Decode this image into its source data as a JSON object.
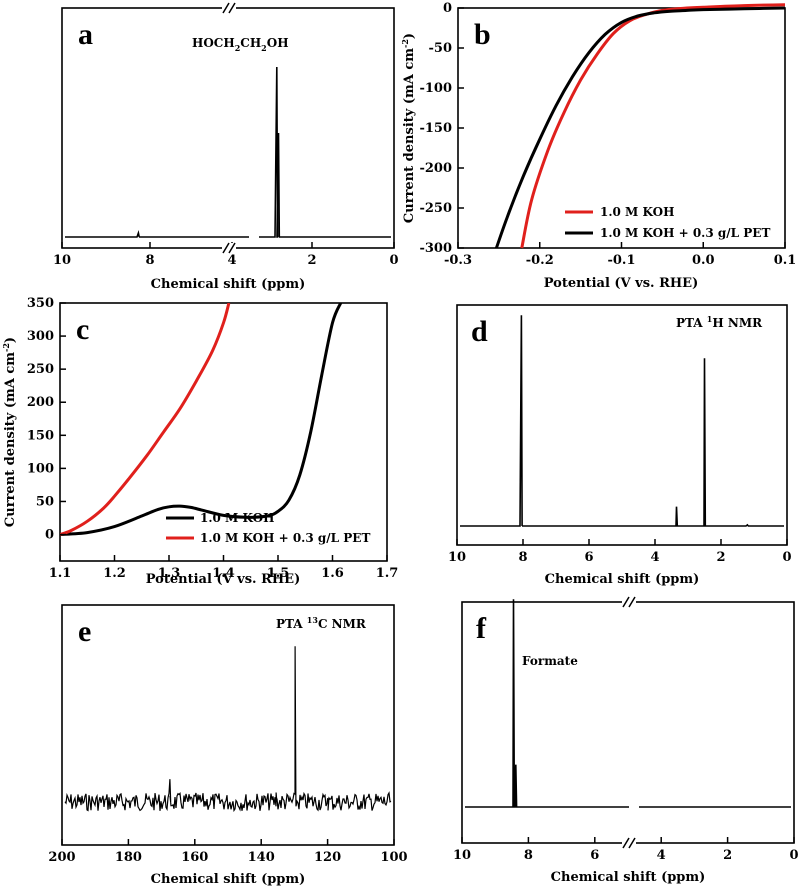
{
  "chart_data": [
    {
      "panel": "a",
      "type": "line",
      "xlabel": "Chemical shift (ppm)",
      "ylabel": "",
      "xlim": [
        10,
        0
      ],
      "x_ticks": [
        10,
        8,
        4,
        2,
        0
      ],
      "axis_break_x": 4.2,
      "annotations": [
        {
          "text": "HOCH₂CH₂OH",
          "x": 3.6
        }
      ],
      "series": [
        {
          "color": "#000000",
          "peaks": [
            {
              "x": 7.7,
              "h": 0.02
            },
            {
              "x": 3.53,
              "h": 0.85
            },
            {
              "x": 3.48,
              "h": 0.52
            }
          ]
        }
      ]
    },
    {
      "panel": "b",
      "type": "line",
      "xlabel": "Potential (V vs. RHE)",
      "ylabel": "Current density (mA cm⁻²)",
      "xlim": [
        -0.3,
        0.1
      ],
      "ylim": [
        -300,
        0
      ],
      "x_ticks": [
        -0.3,
        -0.2,
        -0.1,
        0.0,
        0.1
      ],
      "y_ticks": [
        0,
        -50,
        -100,
        -150,
        -200,
        -250,
        -300
      ],
      "legend": "bottom-right",
      "series": [
        {
          "name": "1.0 M KOH",
          "color": "#e0201c",
          "x": [
            -0.222,
            -0.21,
            -0.19,
            -0.17,
            -0.15,
            -0.13,
            -0.11,
            -0.09,
            -0.07,
            -0.05,
            -0.02,
            0.0,
            0.05,
            0.1
          ],
          "y": [
            -300,
            -240,
            -178,
            -130,
            -90,
            -58,
            -32,
            -16,
            -8,
            -3,
            0,
            1,
            3,
            4
          ]
        },
        {
          "name": "1.0 M KOH + 0.3 g/L PET",
          "color": "#000000",
          "x": [
            -0.253,
            -0.24,
            -0.22,
            -0.2,
            -0.18,
            -0.16,
            -0.14,
            -0.12,
            -0.1,
            -0.08,
            -0.06,
            -0.04,
            -0.02,
            0.0,
            0.05,
            0.1
          ],
          "y": [
            -300,
            -262,
            -210,
            -164,
            -122,
            -86,
            -56,
            -33,
            -18,
            -10,
            -6,
            -4,
            -3,
            -2,
            -1,
            0
          ]
        }
      ]
    },
    {
      "panel": "c",
      "type": "line",
      "xlabel": "Potential (V vs. RHE)",
      "ylabel": "Current density (mA cm⁻²)",
      "xlim": [
        1.1,
        1.7
      ],
      "ylim": [
        -40,
        350
      ],
      "x_ticks": [
        1.1,
        1.2,
        1.3,
        1.4,
        1.5,
        1.6,
        1.7
      ],
      "y_ticks": [
        0,
        50,
        100,
        150,
        200,
        250,
        300,
        350
      ],
      "legend": "bottom-center",
      "series": [
        {
          "name": "1.0 M KOH",
          "color": "#000000",
          "x": [
            1.1,
            1.15,
            1.2,
            1.25,
            1.28,
            1.3,
            1.32,
            1.34,
            1.36,
            1.4,
            1.44,
            1.48,
            1.5,
            1.52,
            1.54,
            1.56,
            1.58,
            1.6,
            1.615
          ],
          "y": [
            0,
            3,
            12,
            28,
            38,
            42,
            43,
            41,
            37,
            29,
            26,
            28,
            35,
            52,
            90,
            155,
            240,
            320,
            350
          ]
        },
        {
          "name": "1.0 M KOH + 0.3 g/L PET",
          "color": "#e0201c",
          "x": [
            1.1,
            1.12,
            1.15,
            1.18,
            1.2,
            1.23,
            1.26,
            1.29,
            1.32,
            1.35,
            1.38,
            1.4,
            1.41
          ],
          "y": [
            0,
            6,
            20,
            40,
            58,
            88,
            120,
            155,
            190,
            232,
            278,
            320,
            350
          ]
        }
      ]
    },
    {
      "panel": "d",
      "type": "line",
      "xlabel": "Chemical shift (ppm)",
      "ylabel": "",
      "xlim": [
        10,
        0
      ],
      "x_ticks": [
        10,
        8,
        6,
        4,
        2,
        0
      ],
      "annotations": [
        {
          "text": "PTA ¹H NMR"
        }
      ],
      "series": [
        {
          "color": "#000000",
          "peaks": [
            {
              "x": 8.05,
              "h": 0.98
            },
            {
              "x": 3.35,
              "h": 0.09
            },
            {
              "x": 2.5,
              "h": 0.78
            },
            {
              "x": 1.2,
              "h": 0.005
            }
          ]
        }
      ]
    },
    {
      "panel": "e",
      "type": "line",
      "xlabel": "Chemical shift (ppm)",
      "ylabel": "",
      "xlim": [
        200,
        100
      ],
      "x_ticks": [
        200,
        180,
        160,
        140,
        120,
        100
      ],
      "annotations": [
        {
          "text": "PTA ¹³C NMR"
        }
      ],
      "series": [
        {
          "color": "#000000",
          "peaks": [
            {
              "x": 167.5,
              "h": 0.12
            },
            {
              "x": 135.5,
              "h": 0.05
            },
            {
              "x": 129.8,
              "h": 0.82
            },
            {
              "x": 120,
              "h": 0.02
            }
          ]
        }
      ]
    },
    {
      "panel": "f",
      "type": "line",
      "xlabel": "Chemical shift (ppm)",
      "ylabel": "",
      "xlim": [
        10,
        0
      ],
      "x_ticks": [
        10,
        8,
        6,
        4,
        2,
        0
      ],
      "axis_break_x": 4.8,
      "annotations": [
        {
          "text": "Formate"
        }
      ],
      "series": [
        {
          "color": "#000000",
          "peaks": [
            {
              "x": 8.45,
              "h": 0.98
            },
            {
              "x": 8.38,
              "h": 0.2
            }
          ]
        }
      ]
    }
  ],
  "labels": {
    "a": "a",
    "b": "b",
    "c": "c",
    "d": "d",
    "e": "e",
    "f": "f",
    "a_annot": "HOCH₂CH₂OH",
    "d_annot_pre": "PTA ",
    "d_annot_sup": "1",
    "d_annot_post": "H NMR",
    "e_annot_pre": "PTA ",
    "e_annot_sup": "13",
    "e_annot_post": "C NMR",
    "f_annot": "Formate",
    "chem_shift": "Chemical shift (ppm)",
    "potential": "Potential (V vs. RHE)",
    "current_pre": "Current density (mA cm",
    "current_sup": "-2",
    "current_post": ")"
  }
}
